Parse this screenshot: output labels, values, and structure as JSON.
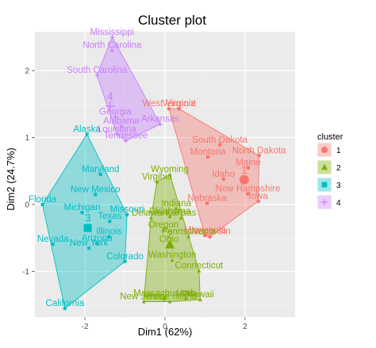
{
  "chart_data": {
    "type": "scatter",
    "title": "Cluster plot",
    "xlabel": "Dim1 (62%)",
    "ylabel": "Dim2 (24.7%)",
    "xlim": [
      -3.25,
      3.25
    ],
    "ylim": [
      -1.68,
      2.58
    ],
    "x_ticks": [
      -2,
      0,
      2
    ],
    "y_ticks": [
      -1,
      0,
      1,
      2
    ],
    "grid": true,
    "legend_position": "right",
    "legend_title": "cluster",
    "colors": {
      "1": "#F8766D",
      "2": "#7CAE00",
      "3": "#00BFC4",
      "4": "#C77CFF"
    },
    "clusters": [
      {
        "name": "1",
        "center": [
          1.98,
          0.37
        ],
        "points": [
          {
            "label": "West Virginia",
            "x": 0.1,
            "y": 1.43
          },
          {
            "label": "Vermont",
            "x": 0.35,
            "y": 1.43
          },
          {
            "label": "South Dakota",
            "x": 1.37,
            "y": 0.89
          },
          {
            "label": "North Dakota",
            "x": 2.35,
            "y": 0.73
          },
          {
            "label": "Montana",
            "x": 1.07,
            "y": 0.71
          },
          {
            "label": "Maine",
            "x": 2.08,
            "y": 0.55
          },
          {
            "label": "Idaho",
            "x": 1.46,
            "y": 0.38
          },
          {
            "label": "New Hampshire",
            "x": 2.07,
            "y": 0.16
          },
          {
            "label": "Iowa",
            "x": 2.33,
            "y": 0.05
          },
          {
            "label": "Nebraska",
            "x": 1.05,
            "y": 0.02
          },
          {
            "label": "Wisconsin",
            "x": 1.12,
            "y": -0.48
          },
          {
            "label": "Minnesota",
            "x": 1.0,
            "y": -0.46
          }
        ]
      },
      {
        "name": "2",
        "center": [
          0.12,
          -0.6
        ],
        "points": [
          {
            "label": "Wyoming",
            "x": 0.12,
            "y": 0.45
          },
          {
            "label": "Virginia",
            "x": -0.2,
            "y": 0.34
          },
          {
            "label": "Indiana",
            "x": 0.28,
            "y": -0.06
          },
          {
            "label": "Delaware",
            "x": -0.35,
            "y": -0.2
          },
          {
            "label": "Oklahoma",
            "x": 0.12,
            "y": -0.18
          },
          {
            "label": "Kansas",
            "x": 0.4,
            "y": -0.2
          },
          {
            "label": "Oregon",
            "x": -0.04,
            "y": -0.38
          },
          {
            "label": "Pennsylvania",
            "x": 0.59,
            "y": -0.48
          },
          {
            "label": "Ohio",
            "x": 0.1,
            "y": -0.6
          },
          {
            "label": "Washington",
            "x": 0.18,
            "y": -0.83
          },
          {
            "label": "Connecticut",
            "x": 0.85,
            "y": -0.99
          },
          {
            "label": "New Jersey",
            "x": -0.53,
            "y": -1.45
          },
          {
            "label": "Massachusetts",
            "x": -0.03,
            "y": -1.4
          },
          {
            "label": "Utah",
            "x": 0.52,
            "y": -1.4
          },
          {
            "label": "Rhode Island",
            "x": 0.12,
            "y": -1.45
          },
          {
            "label": "Hawaii",
            "x": 0.88,
            "y": -1.42
          }
        ]
      },
      {
        "name": "3",
        "center": [
          -1.93,
          -0.35
        ],
        "points": [
          {
            "label": "Alaska",
            "x": -1.95,
            "y": 1.05
          },
          {
            "label": "Maryland",
            "x": -1.61,
            "y": 0.45
          },
          {
            "label": "New Mexico",
            "x": -1.74,
            "y": 0.15
          },
          {
            "label": "Florida",
            "x": -3.06,
            "y": 0.0
          },
          {
            "label": "Michigan",
            "x": -2.07,
            "y": -0.12
          },
          {
            "label": "Missouri",
            "x": -0.95,
            "y": -0.15
          },
          {
            "label": "Texas",
            "x": -1.38,
            "y": -0.25
          },
          {
            "label": "Illinois",
            "x": -1.4,
            "y": -0.48
          },
          {
            "label": "Nevada",
            "x": -2.8,
            "y": -0.59
          },
          {
            "label": "Arizona",
            "x": -1.7,
            "y": -0.58
          },
          {
            "label": "New York",
            "x": -1.9,
            "y": -0.65
          },
          {
            "label": "Colorado",
            "x": -1.0,
            "y": -0.85
          },
          {
            "label": "California",
            "x": -2.5,
            "y": -1.55
          }
        ]
      },
      {
        "name": "4",
        "center": [
          -1.37,
          1.47
        ],
        "points": [
          {
            "label": "Mississippi",
            "x": -1.32,
            "y": 2.5
          },
          {
            "label": "North Carolina",
            "x": -1.32,
            "y": 2.3
          },
          {
            "label": "South Carolina",
            "x": -1.7,
            "y": 1.93
          },
          {
            "label": "Georgia",
            "x": -1.24,
            "y": 1.31
          },
          {
            "label": "Alabama",
            "x": -1.09,
            "y": 1.17
          },
          {
            "label": "Louisiana",
            "x": -1.2,
            "y": 1.05
          },
          {
            "label": "Tennessee",
            "x": -0.98,
            "y": 0.95
          },
          {
            "label": "Arkansas",
            "x": -0.12,
            "y": 1.2
          }
        ]
      }
    ]
  }
}
